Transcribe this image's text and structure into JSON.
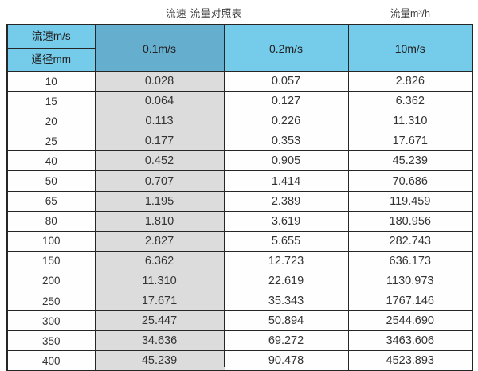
{
  "page": {
    "title_main": "流速-流量对照表",
    "title_unit": "流量m³/h"
  },
  "table": {
    "header": {
      "velocity_label": "流速m/s",
      "diameter_label": "通径mm",
      "col_01": "0.1m/s",
      "col_02": "0.2m/s",
      "col_10": "10m/s"
    },
    "rows": [
      [
        "10",
        "0.028",
        "0.057",
        "2.826"
      ],
      [
        "15",
        "0.064",
        "0.127",
        "6.362"
      ],
      [
        "20",
        "0.113",
        "0.226",
        "11.310"
      ],
      [
        "25",
        "0.177",
        "0.353",
        "17.671"
      ],
      [
        "40",
        "0.452",
        "0.905",
        "45.239"
      ],
      [
        "50",
        "0.707",
        "1.414",
        "70.686"
      ],
      [
        "65",
        "1.195",
        "2.389",
        "119.459"
      ],
      [
        "80",
        "1.810",
        "3.619",
        "180.956"
      ],
      [
        "100",
        "2.827",
        "5.655",
        "282.743"
      ],
      [
        "150",
        "6.362",
        "12.723",
        "636.173"
      ],
      [
        "200",
        "11.310",
        "22.619",
        "1130.973"
      ],
      [
        "250",
        "17.671",
        "35.343",
        "1767.146"
      ],
      [
        "300",
        "25.447",
        "50.894",
        "2544.690"
      ],
      [
        "350",
        "34.636",
        "69.272",
        "3463.606"
      ],
      [
        "400",
        "45.239",
        "90.478",
        "4523.893"
      ]
    ]
  },
  "colors": {
    "header_light_blue": "#74cbea",
    "header_dark_blue": "#66aecd",
    "highlight_column_gray": "#dcdcdc",
    "border": "#262626",
    "text": "#333333"
  },
  "chart_data": {
    "type": "table",
    "title": "流速-流量对照表",
    "unit_label": "流量m³/h",
    "row_header_label": "通径mm",
    "column_header_label": "流速m/s",
    "columns": [
      "0.1m/s",
      "0.2m/s",
      "10m/s"
    ],
    "diameters_mm": [
      10,
      15,
      20,
      25,
      40,
      50,
      65,
      80,
      100,
      150,
      200,
      250,
      300,
      350,
      400
    ],
    "series": [
      {
        "name": "0.1m/s",
        "values": [
          0.028,
          0.064,
          0.113,
          0.177,
          0.452,
          0.707,
          1.195,
          1.81,
          2.827,
          6.362,
          11.31,
          17.671,
          25.447,
          34.636,
          45.239
        ]
      },
      {
        "name": "0.2m/s",
        "values": [
          0.057,
          0.127,
          0.226,
          0.353,
          0.905,
          1.414,
          2.389,
          3.619,
          5.655,
          12.723,
          22.619,
          35.343,
          50.894,
          69.272,
          90.478
        ]
      },
      {
        "name": "10m/s",
        "values": [
          2.826,
          6.362,
          11.31,
          17.671,
          45.239,
          70.686,
          119.459,
          180.956,
          282.743,
          636.173,
          1130.973,
          1767.146,
          2544.69,
          3463.606,
          4523.893
        ]
      }
    ],
    "layout": {
      "highlighted_column": "0.1m/s",
      "grid": true,
      "legend": false
    }
  }
}
